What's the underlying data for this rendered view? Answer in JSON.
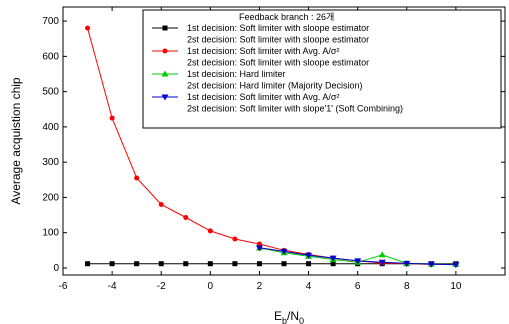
{
  "chart_data": {
    "type": "line",
    "xlabel": "E_b/N_0",
    "ylabel": "Average acquistion chip",
    "xlim": [
      -6,
      12
    ],
    "ylim": [
      -20,
      740
    ],
    "xticks": [
      -6,
      -4,
      -2,
      0,
      2,
      4,
      6,
      8,
      10
    ],
    "yticks": [
      0,
      100,
      200,
      300,
      400,
      500,
      600,
      700
    ],
    "grid": false,
    "legend_title": "Feedback branch : 26개",
    "legend_placement": "top-right",
    "series": [
      {
        "legend": [
          "1st decision: Soft limiter with sloope estimator",
          "2st decision: Soft limiter with sloope estimator"
        ],
        "color": "#000000",
        "marker": "square",
        "x": [
          -5,
          -4,
          -3,
          -2,
          -1,
          0,
          1,
          2,
          3,
          4,
          5,
          6,
          7,
          8,
          9,
          10
        ],
        "y": [
          12,
          12,
          12,
          12,
          12,
          12,
          12,
          12,
          12,
          12,
          12,
          12,
          12,
          12,
          12,
          12
        ]
      },
      {
        "legend": [
          "1st decision: Soft limiter with Avg. A/σ²",
          "2st decision: Soft limiter with sloope estimator"
        ],
        "color": "#ff0000",
        "marker": "circle",
        "x": [
          -5,
          -4,
          -3,
          -2,
          -1,
          0,
          1,
          2,
          3,
          4,
          5,
          6,
          7,
          8,
          9,
          10
        ],
        "y": [
          680,
          425,
          255,
          180,
          143,
          105,
          82,
          68,
          50,
          38,
          28,
          20,
          14,
          12,
          10,
          10
        ]
      },
      {
        "legend": [
          "1st decision: Hard limiter",
          "2st decision: Hard limiter (Majority Decision)"
        ],
        "color": "#00cc00",
        "marker": "triangle-up",
        "x": [
          2,
          3,
          4,
          5,
          6,
          7,
          8,
          9,
          10
        ],
        "y": [
          57,
          43,
          33,
          24,
          16,
          37,
          13,
          11,
          10
        ]
      },
      {
        "legend": [
          "1st decision: Soft limiter with Avg. A/σ²",
          "2st decision: Soft limiter with slope'1' (Soft Combining)"
        ],
        "color": "#0000cc",
        "marker": "triangle-down",
        "x": [
          2,
          3,
          4,
          5,
          6,
          7,
          8,
          9,
          10
        ],
        "y": [
          57,
          47,
          36,
          28,
          20,
          16,
          13,
          11,
          9
        ]
      }
    ]
  }
}
